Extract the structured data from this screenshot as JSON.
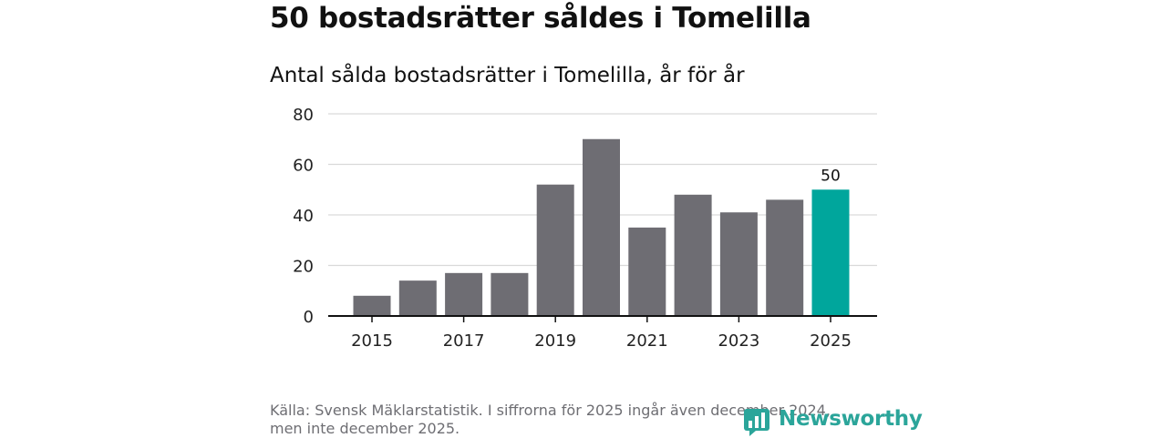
{
  "title": "50 bostadsrätter såldes i Tomelilla",
  "subtitle": "Antal sålda bostadsrätter i Tomelilla, år för år",
  "source_line1": "Källa: Svensk Mäklarstatistik. I siffrorna för 2025 ingår även december 2024,",
  "source_line2": "men inte december 2025.",
  "logo_text": "Newsworthy",
  "colors": {
    "bar": "#6e6d73",
    "highlight": "#00a69c",
    "grid": "#d9d9d9",
    "axis": "#111111",
    "logo": "#2ba59a"
  },
  "chart_data": {
    "type": "bar",
    "categories": [
      "2015",
      "2016",
      "2017",
      "2018",
      "2019",
      "2020",
      "2021",
      "2022",
      "2023",
      "2024",
      "2025"
    ],
    "values": [
      8,
      14,
      17,
      17,
      52,
      70,
      35,
      48,
      41,
      46,
      50
    ],
    "highlight_index": 10,
    "data_labels": [
      {
        "index": 10,
        "text": "50"
      }
    ],
    "x_tick_labels": [
      "2015",
      "2017",
      "2019",
      "2021",
      "2023",
      "2025"
    ],
    "y_ticks": [
      0,
      20,
      40,
      60,
      80
    ],
    "ylim": [
      0,
      80
    ],
    "grid": true,
    "title": "Antal sålda bostadsrätter i Tomelilla, år för år",
    "xlabel": "",
    "ylabel": ""
  }
}
